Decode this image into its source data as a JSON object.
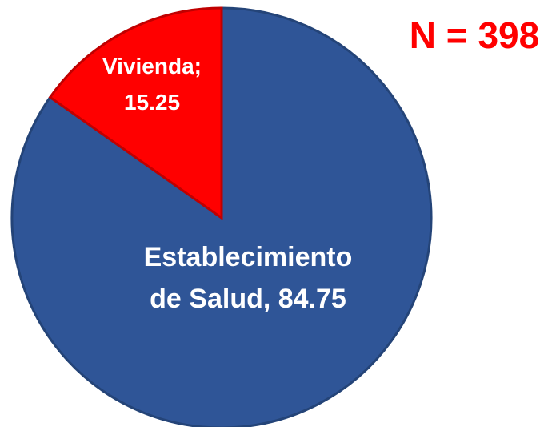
{
  "chart_data": {
    "type": "pie",
    "values": [
      84.75,
      15.25
    ],
    "value_labels": [
      "Establecimiento de Salud, 84.75",
      "Vivienda; 15.25"
    ],
    "colors": [
      "#2F5597",
      "#FF0000"
    ],
    "annotation": "N = 398"
  }
}
